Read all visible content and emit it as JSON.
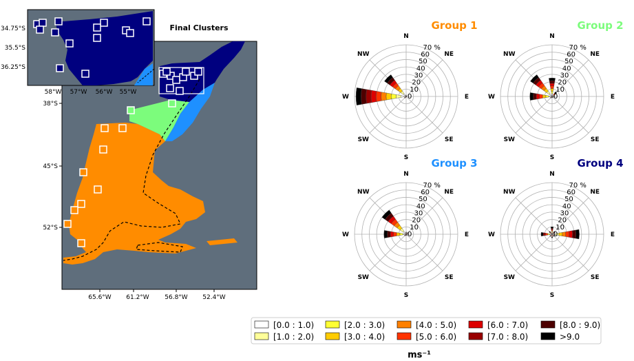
{
  "map": {
    "title": "Final Clusters",
    "x_ticks": [
      "65.6°W",
      "61.2°W",
      "56.8°W",
      "52.4°W"
    ],
    "y_ticks": [
      "38°S",
      "45°S",
      "52°S"
    ],
    "colors": {
      "background": "#5f6e7c",
      "group1": "#ff8c00",
      "group2": "#7cfc7c",
      "group3": "#1e90ff",
      "group4": "#00007f"
    }
  },
  "inset": {
    "x_ticks": [
      "58°W",
      "57°W",
      "56°W",
      "55°W"
    ],
    "y_ticks": [
      "34.75°S",
      "35.5°S",
      "36.25°S"
    ]
  },
  "direction_labels": [
    "N",
    "NE",
    "E",
    "SE",
    "S",
    "SW",
    "W",
    "NW"
  ],
  "radial_labels": [
    "0",
    "10",
    "20",
    "30",
    "40",
    "50",
    "60",
    "70 %"
  ],
  "legend": {
    "unit": "ms⁻¹",
    "bins": [
      {
        "label": "[0.0 : 1.0)",
        "color": "#ffffff"
      },
      {
        "label": "[1.0 : 2.0)",
        "color": "#ffff99"
      },
      {
        "label": "[2.0 : 3.0)",
        "color": "#ffff33"
      },
      {
        "label": "[3.0 : 4.0)",
        "color": "#ffcc00"
      },
      {
        "label": "[4.0 : 5.0)",
        "color": "#ff8000"
      },
      {
        "label": "[5.0 : 6.0)",
        "color": "#ff3300"
      },
      {
        "label": "[6.0 : 7.0)",
        "color": "#dd0000"
      },
      {
        "label": "[7.0 : 8.0)",
        "color": "#990000"
      },
      {
        "label": "[8.0 : 9.0)",
        "color": "#4d0000"
      },
      {
        "label": ">9.0",
        "color": "#000000"
      }
    ]
  },
  "chart_data": [
    {
      "type": "windrose",
      "title": "Group 1",
      "title_color": "#ff8c00",
      "rmax": 70,
      "directions": [
        "N",
        "NE",
        "E",
        "SE",
        "S",
        "SW",
        "W",
        "NW"
      ],
      "frequencies": [
        2,
        1,
        1,
        1,
        1,
        3,
        68,
        36
      ]
    },
    {
      "type": "windrose",
      "title": "Group 2",
      "title_color": "#7cfc7c",
      "rmax": 70,
      "directions": [
        "N",
        "NE",
        "E",
        "SE",
        "S",
        "SW",
        "W",
        "NW"
      ],
      "frequencies": [
        25,
        8,
        3,
        2,
        2,
        3,
        30,
        36
      ]
    },
    {
      "type": "windrose",
      "title": "Group 3",
      "title_color": "#1e90ff",
      "rmax": 70,
      "directions": [
        "N",
        "NE",
        "E",
        "SE",
        "S",
        "SW",
        "W",
        "NW"
      ],
      "frequencies": [
        3,
        3,
        2,
        2,
        2,
        3,
        30,
        40
      ]
    },
    {
      "type": "windrose",
      "title": "Group 4",
      "title_color": "#00007f",
      "rmax": 70,
      "directions": [
        "N",
        "NE",
        "E",
        "SE",
        "S",
        "SW",
        "W",
        "NW"
      ],
      "frequencies": [
        10,
        5,
        37,
        4,
        5,
        4,
        15,
        5
      ]
    }
  ]
}
